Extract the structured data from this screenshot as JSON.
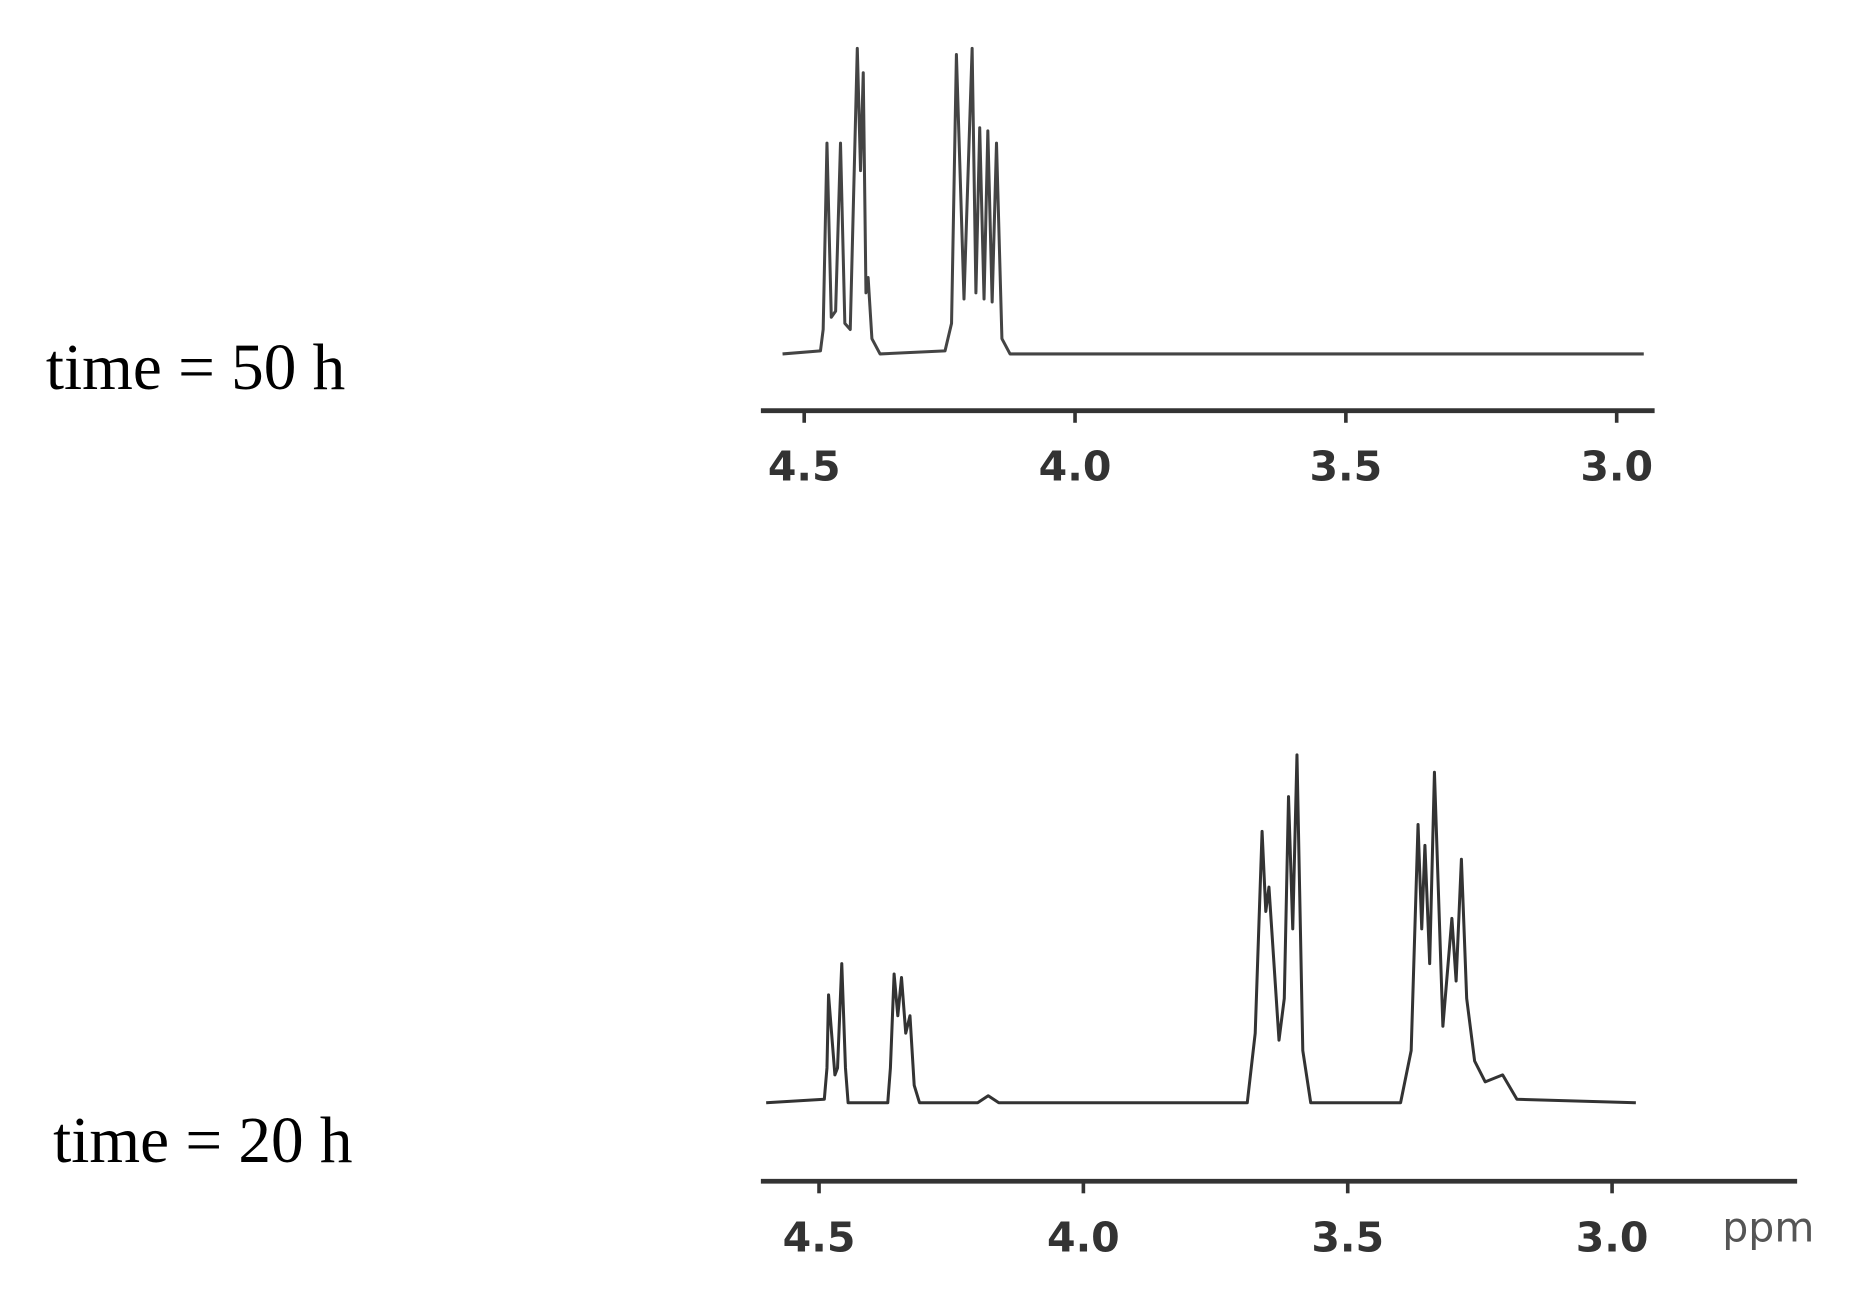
{
  "chart_data": [
    {
      "type": "line",
      "label": "time = 50 h",
      "x": [
        4.54,
        4.47,
        4.465,
        4.458,
        4.45,
        4.442,
        4.433,
        4.425,
        4.415,
        4.402,
        4.396,
        4.391,
        4.386,
        4.382,
        4.375,
        4.36,
        4.24,
        4.228,
        4.219,
        4.205,
        4.19,
        4.183,
        4.176,
        4.168,
        4.161,
        4.153,
        4.145,
        4.135,
        4.12,
        2.95
      ],
      "values": [
        0,
        1,
        8,
        69,
        12,
        14,
        69,
        10,
        8,
        100,
        60,
        92,
        20,
        25,
        5,
        0,
        1,
        10,
        98,
        18,
        100,
        20,
        74,
        18,
        73,
        17,
        69,
        5,
        0,
        0
      ],
      "color": "#444444",
      "xlim": [
        4.58,
        2.93
      ],
      "ylim": [
        0,
        100
      ],
      "xticks": [
        4.5,
        {
          "value": 4,
          "label": "4.0"
        },
        3.5,
        {
          "value": 3,
          "label": "3.0"
        }
      ]
    },
    {
      "type": "line",
      "label": "time = 20 h",
      "x_label": "ppm",
      "x": [
        4.6,
        4.49,
        4.485,
        4.482,
        4.47,
        4.465,
        4.457,
        4.45,
        4.445,
        4.37,
        4.365,
        4.358,
        4.351,
        4.344,
        4.336,
        4.328,
        4.32,
        4.31,
        4.2,
        4.18,
        4.16,
        3.69,
        3.675,
        3.662,
        3.655,
        3.649,
        3.63,
        3.62,
        3.612,
        3.604,
        3.596,
        3.585,
        3.57,
        3.4,
        3.38,
        3.367,
        3.36,
        3.354,
        3.345,
        3.336,
        3.32,
        3.303,
        3.295,
        3.285,
        3.275,
        3.26,
        3.24,
        3.207,
        3.18,
        2.955
      ],
      "values": [
        0,
        1,
        10,
        31,
        8,
        10,
        40,
        10,
        0,
        0,
        10,
        37,
        25,
        36,
        20,
        25,
        5,
        0,
        0,
        2,
        0,
        0,
        20,
        78,
        55,
        62,
        18,
        30,
        88,
        50,
        100,
        15,
        0,
        0,
        15,
        80,
        50,
        74,
        40,
        95,
        22,
        53,
        35,
        70,
        30,
        12,
        6,
        8,
        1,
        0
      ],
      "color": "#333333",
      "xlim": [
        4.61,
        2.65
      ],
      "ylim": [
        0,
        100
      ],
      "xticks": [
        4.5,
        {
          "value": 4,
          "label": "4.0"
        },
        3.5,
        {
          "value": 3,
          "label": "3.0"
        }
      ]
    }
  ]
}
